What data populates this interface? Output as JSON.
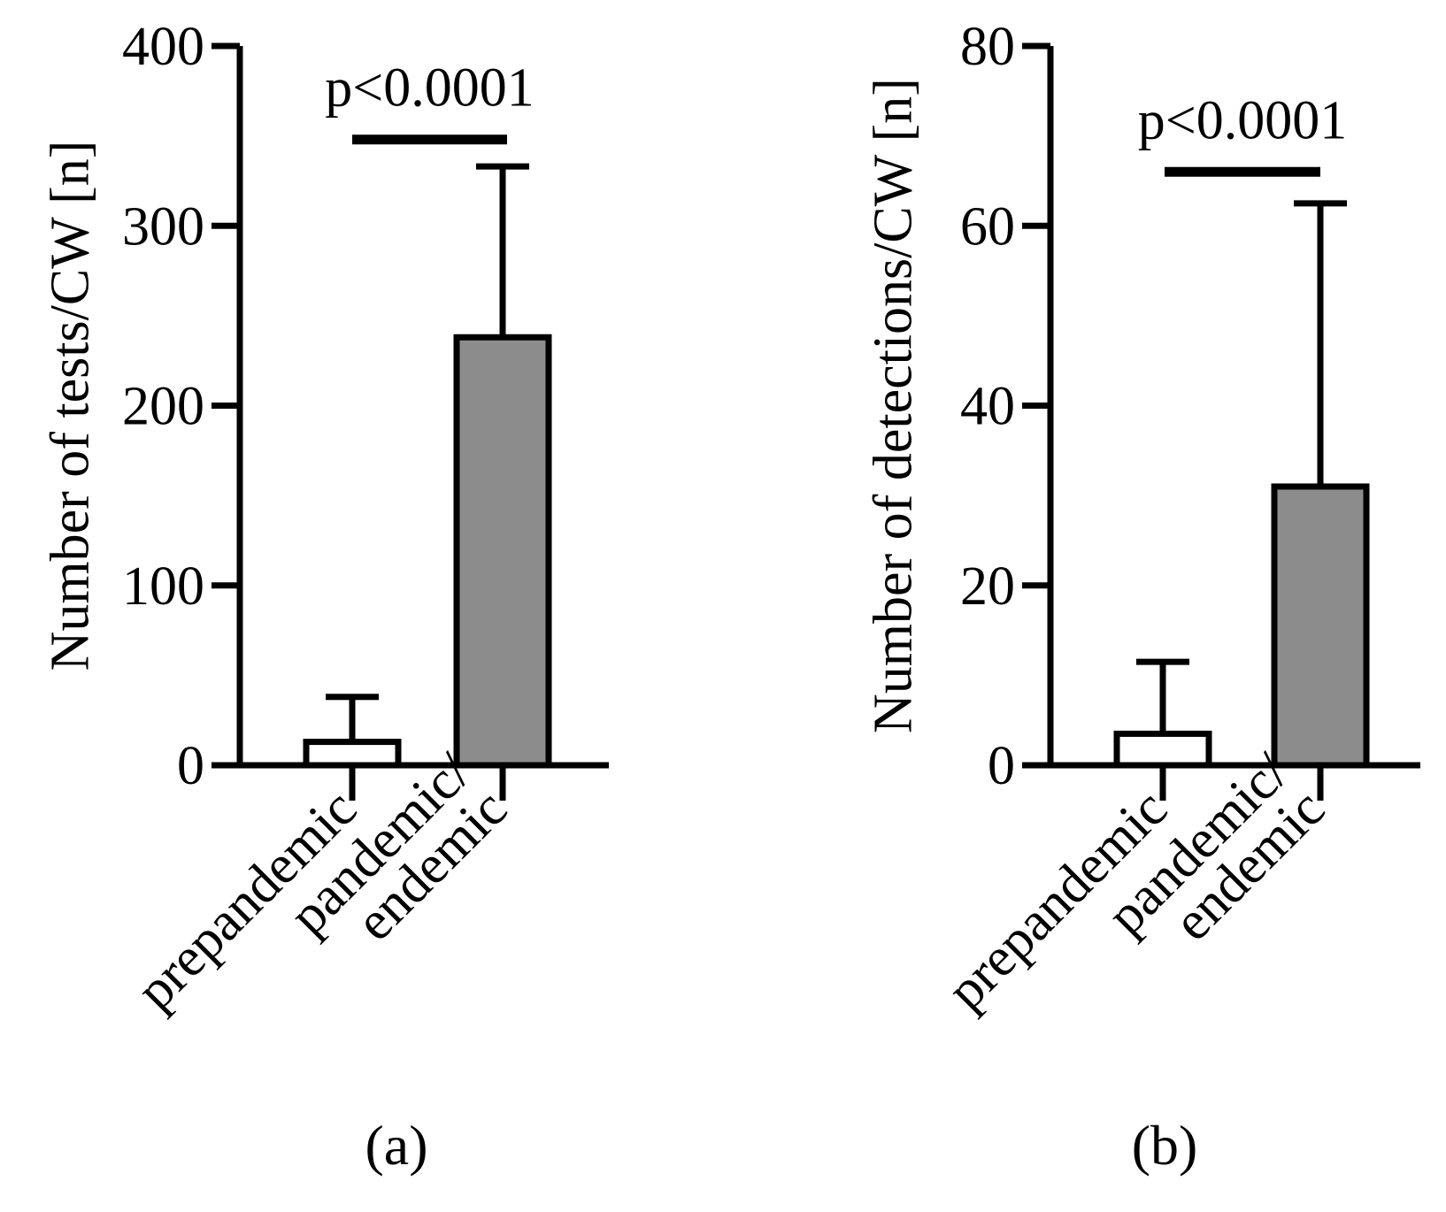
{
  "chart_data": [
    {
      "type": "bar",
      "panel_label": "(a)",
      "title": "",
      "xlabel": "",
      "ylabel": "Number of tests/CW [n]",
      "ylim": [
        0,
        400
      ],
      "yticks": [
        0,
        100,
        200,
        300,
        400
      ],
      "categories": [
        {
          "id": "prepandemic",
          "lines": [
            "prepandemic"
          ],
          "value": 13,
          "error_upper": 38,
          "fill": "#ffffff"
        },
        {
          "id": "pandemic-endemic",
          "lines": [
            "pandemic/",
            "endemic"
          ],
          "value": 238,
          "error_upper": 333,
          "fill": "#8c8c8c"
        }
      ],
      "significance": {
        "label": "p<0.0001",
        "y": 348
      }
    },
    {
      "type": "bar",
      "panel_label": "(b)",
      "title": "",
      "xlabel": "",
      "ylabel": "Number of detections/CW [n]",
      "ylim": [
        0,
        80
      ],
      "yticks": [
        0,
        20,
        40,
        60,
        80
      ],
      "categories": [
        {
          "id": "prepandemic",
          "lines": [
            "prepandemic"
          ],
          "value": 3.5,
          "error_upper": 11.5,
          "fill": "#ffffff"
        },
        {
          "id": "pandemic-endemic",
          "lines": [
            "pandemic/",
            "endemic"
          ],
          "value": 31,
          "error_upper": 62.5,
          "fill": "#8c8c8c"
        }
      ],
      "significance": {
        "label": "p<0.0001",
        "y": 66
      }
    }
  ]
}
